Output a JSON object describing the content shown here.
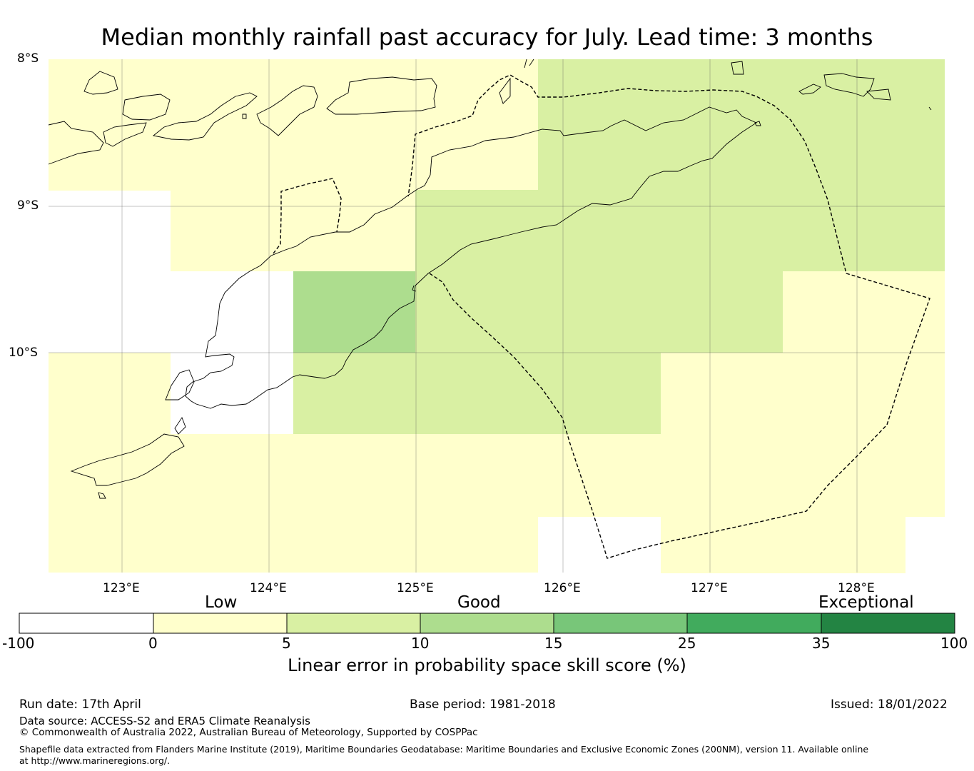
{
  "title": "Median monthly rainfall past accuracy for July. Lead time: 3 months",
  "map": {
    "lat_labels": [
      "8°S",
      "9°S",
      "10°S"
    ],
    "lon_labels": [
      "123°E",
      "124°E",
      "125°E",
      "126°E",
      "127°E",
      "128°E"
    ],
    "extent": {
      "lon": [
        122.5,
        128.6
      ],
      "lat": [
        -11.5,
        -8.0
      ]
    },
    "gridlines": true,
    "cell_legend_classes": [
      "0 to 5",
      "5 to 10",
      "10 to 15"
    ],
    "features": [
      "skill-score grid cells",
      "coastlines",
      "maritime boundary (dashed)"
    ]
  },
  "colorbar": {
    "category_labels": [
      "Low",
      "Good",
      "Exceptional"
    ],
    "ticks": [
      "-100",
      "0",
      "5",
      "10",
      "15",
      "25",
      "35",
      "100"
    ],
    "colors": [
      "#ffffff",
      "#ffffcc",
      "#d9f0a3",
      "#addd8e",
      "#78c679",
      "#41ab5d",
      "#238443"
    ],
    "label": "Linear error in probability space skill score (%)"
  },
  "footer": {
    "run_date": "Run date: 17th April",
    "base_period": "Base period: 1981-2018",
    "issued": "Issued: 18/01/2022",
    "data_source": "Data source: ACCESS-S2 and ERA5 Climate Reanalysis",
    "copyright": "© Commonwealth of Australia 2022, Australian Bureau of Meteorology, Supported by COSPPac",
    "shapefile_note": "Shapefile data extracted from Flanders Marine Institute (2019), Maritime Boundaries Geodatabase: Maritime Boundaries and Exclusive Economic Zones (200NM), version 11. Available online at http://www.marineregions.org/."
  }
}
